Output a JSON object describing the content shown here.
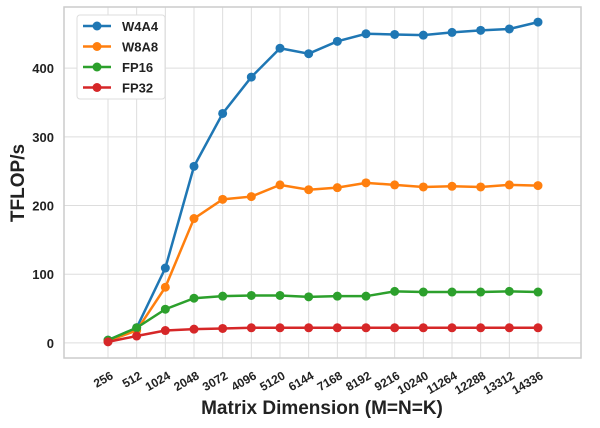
{
  "chart_data": {
    "type": "line",
    "title": "",
    "xlabel": "Matrix Dimension (M=N=K)",
    "ylabel": "TFLOP/s",
    "categories": [
      "256",
      "512",
      "1024",
      "2048",
      "3072",
      "4096",
      "5120",
      "6144",
      "7168",
      "8192",
      "9216",
      "10240",
      "11264",
      "12288",
      "13312",
      "14336"
    ],
    "yticks": [
      0,
      100,
      200,
      300,
      400
    ],
    "ylim": [
      -22,
      489
    ],
    "grid": true,
    "legend_position": "top-left",
    "series": [
      {
        "name": "W4A4",
        "color": "#1f77b4",
        "values": [
          4,
          22,
          109,
          257,
          334,
          387,
          429,
          421,
          439,
          450,
          449,
          448,
          452,
          455,
          457,
          467
        ]
      },
      {
        "name": "W8A8",
        "color": "#ff7f0e",
        "values": [
          3,
          18,
          81,
          181,
          209,
          213,
          230,
          223,
          226,
          233,
          230,
          227,
          228,
          227,
          230,
          229
        ]
      },
      {
        "name": "FP16",
        "color": "#2ca02c",
        "values": [
          4,
          22,
          49,
          65,
          68,
          69,
          69,
          67,
          68,
          68,
          75,
          74,
          74,
          74,
          75,
          74
        ]
      },
      {
        "name": "FP32",
        "color": "#d62728",
        "values": [
          1.5,
          10,
          18,
          20,
          21,
          22,
          22,
          22,
          22,
          22,
          22,
          22,
          22,
          22,
          22,
          22
        ]
      }
    ]
  }
}
